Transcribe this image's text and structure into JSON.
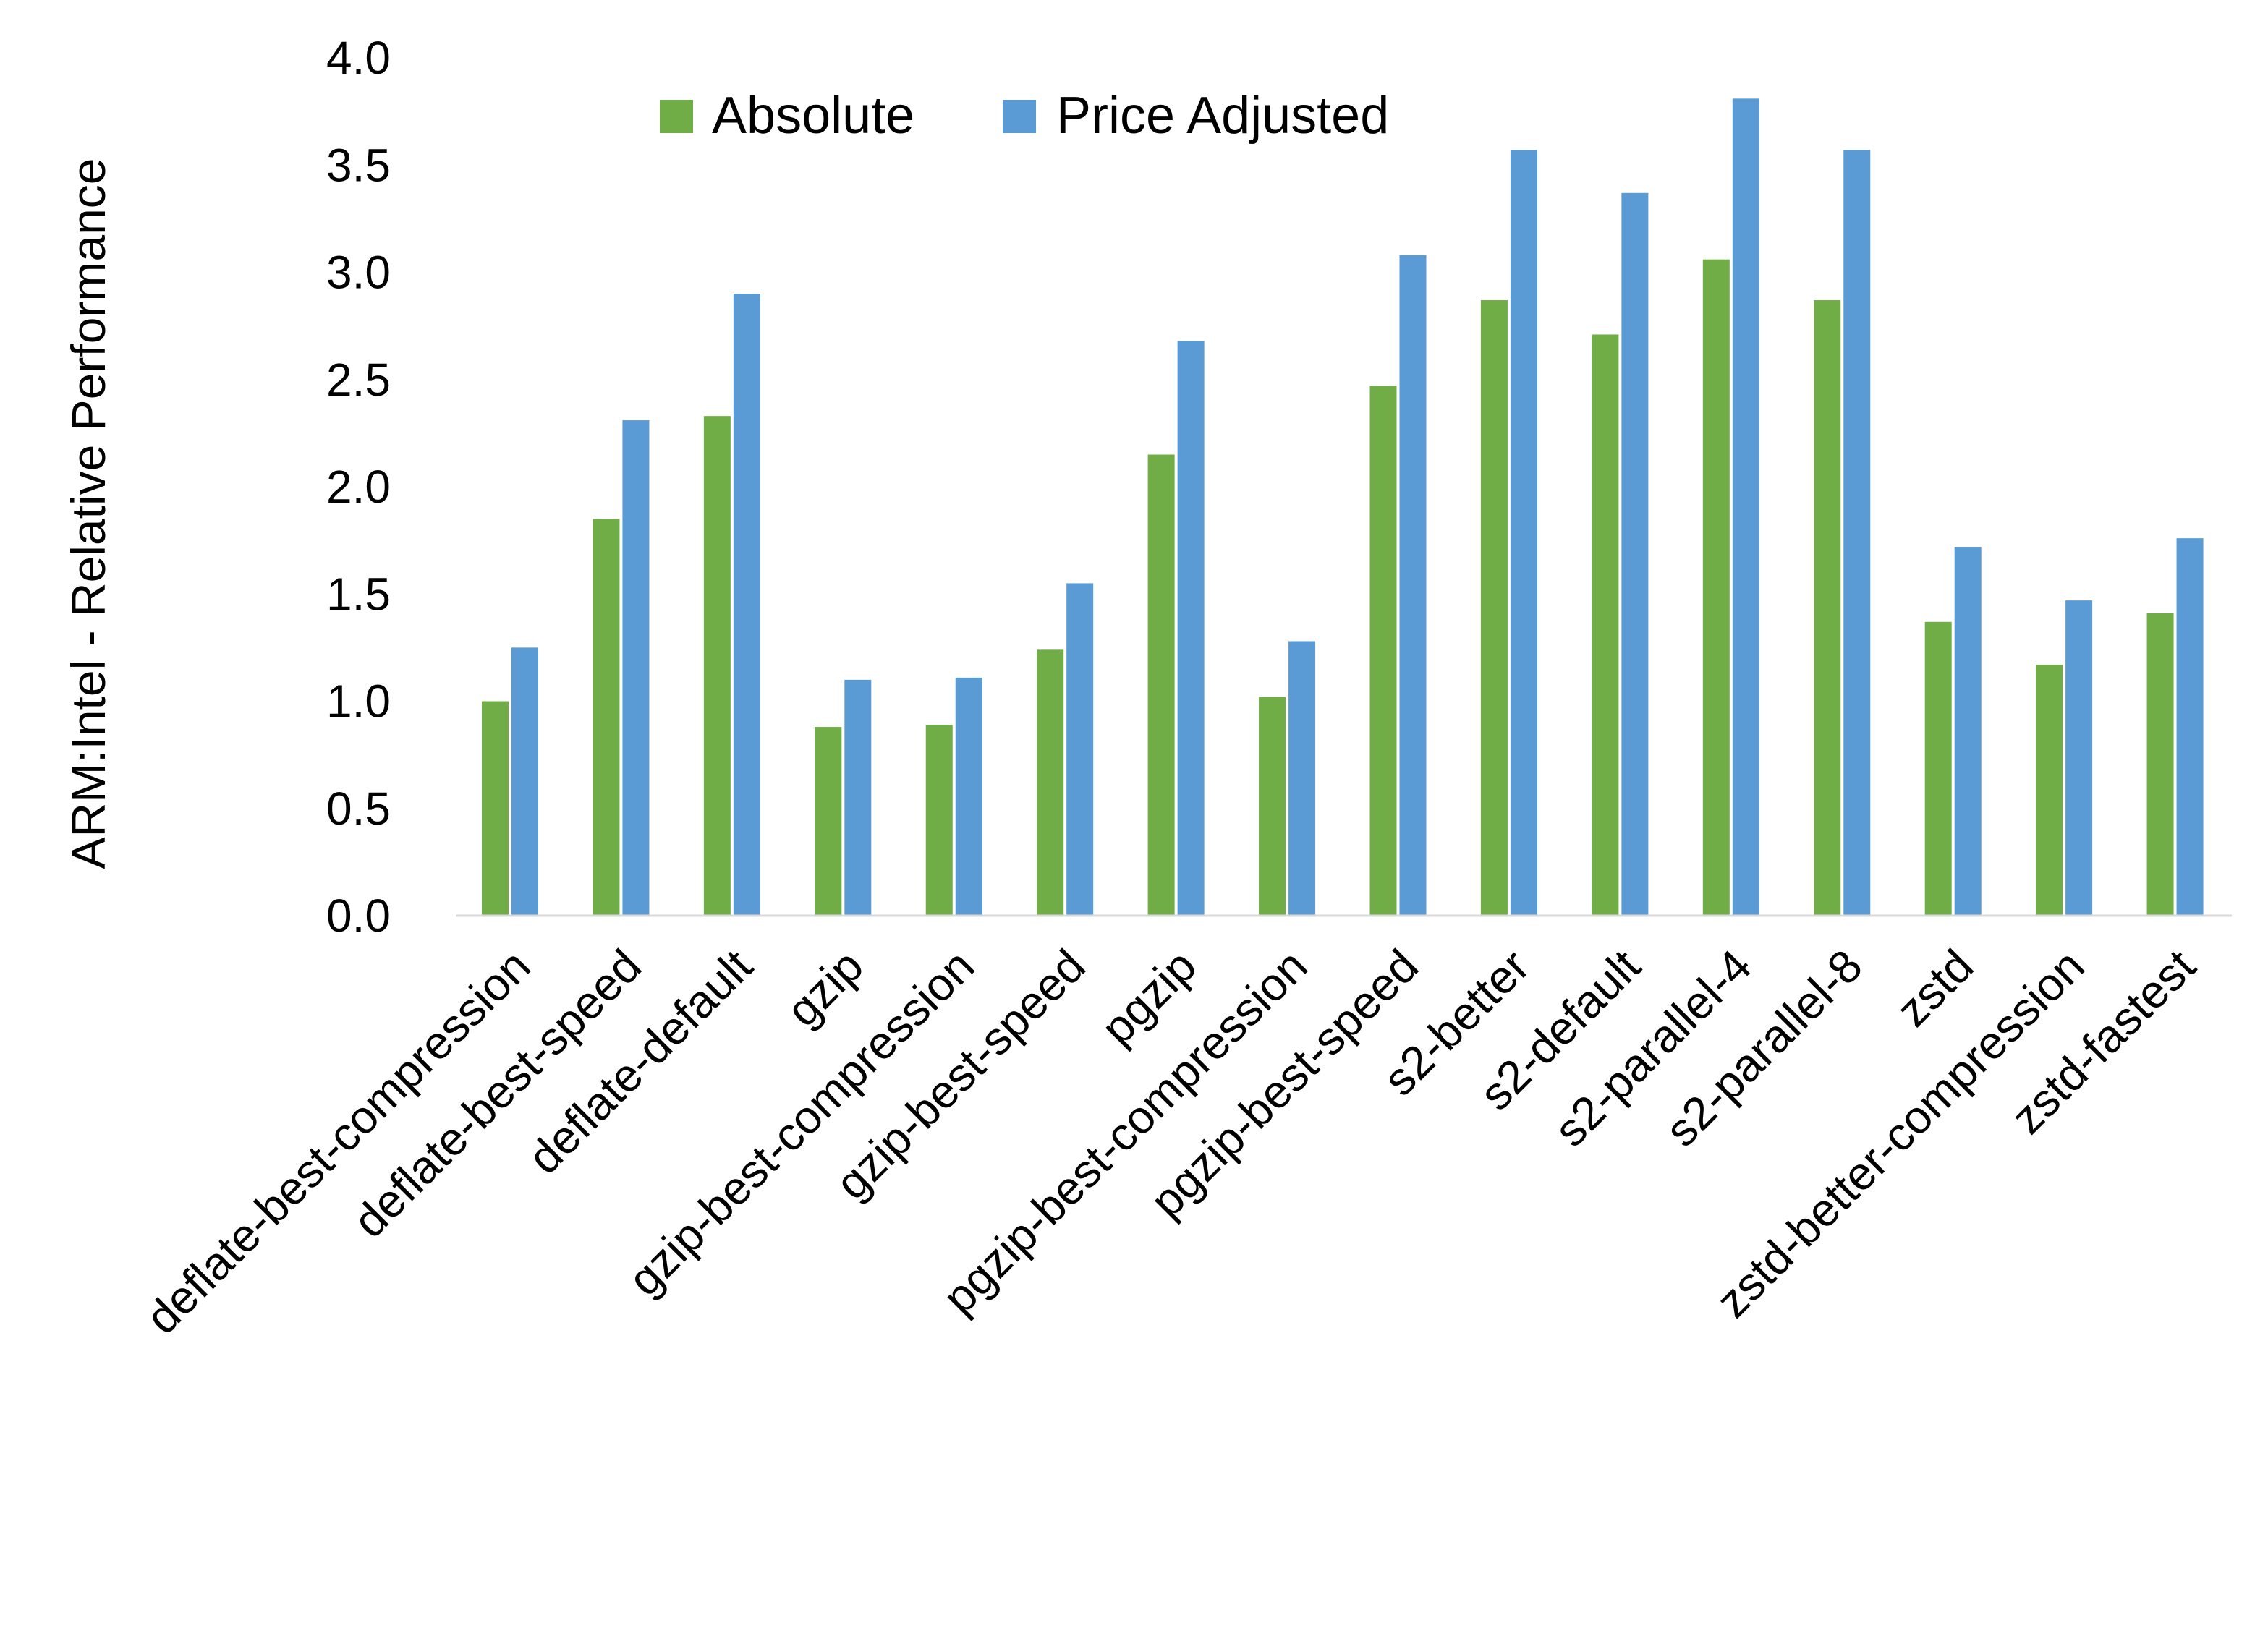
{
  "chart_data": {
    "type": "bar",
    "title": "",
    "xlabel": "",
    "ylabel": "ARM:Intel - Relative Performance",
    "ylim": [
      0,
      4
    ],
    "yticks": [
      "0.0",
      "0.5",
      "1.0",
      "1.5",
      "2.0",
      "2.5",
      "3.0",
      "3.5",
      "4.0"
    ],
    "grid": false,
    "legend_position": "top",
    "categories": [
      "deflate-best-compression",
      "deflate-best-speed",
      "deflate-default",
      "gzip",
      "gzip-best-compression",
      "gzip-best-speed",
      "pgzip",
      "pgzip-best-compression",
      "pgzip-best-speed",
      "s2-better",
      "s2-default",
      "s2-parallel-4",
      "s2-parallel-8",
      "zstd",
      "zstd-better-compression",
      "zstd-fastest"
    ],
    "series": [
      {
        "name": "Absolute",
        "color": "#70AD47",
        "values": [
          1.0,
          1.85,
          2.33,
          0.88,
          0.89,
          1.24,
          2.15,
          1.02,
          2.47,
          2.87,
          2.71,
          3.06,
          2.87,
          1.37,
          1.17,
          1.41
        ]
      },
      {
        "name": "Price Adjusted",
        "color": "#5B9BD5",
        "values": [
          1.25,
          2.31,
          2.9,
          1.1,
          1.11,
          1.55,
          2.68,
          1.28,
          3.08,
          3.57,
          3.37,
          3.81,
          3.57,
          1.72,
          1.47,
          1.76
        ]
      }
    ]
  }
}
